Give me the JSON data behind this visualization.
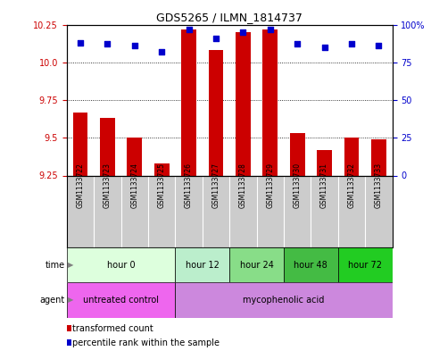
{
  "title": "GDS5265 / ILMN_1814737",
  "samples": [
    "GSM1133722",
    "GSM1133723",
    "GSM1133724",
    "GSM1133725",
    "GSM1133726",
    "GSM1133727",
    "GSM1133728",
    "GSM1133729",
    "GSM1133730",
    "GSM1133731",
    "GSM1133732",
    "GSM1133733"
  ],
  "bar_values": [
    9.67,
    9.63,
    9.5,
    9.33,
    10.22,
    10.08,
    10.2,
    10.22,
    9.53,
    9.42,
    9.5,
    9.49
  ],
  "percentile_values": [
    88,
    87,
    86,
    82,
    97,
    91,
    95,
    97,
    87,
    85,
    87,
    86
  ],
  "ylim_left": [
    9.25,
    10.25
  ],
  "ylim_right": [
    0,
    100
  ],
  "yticks_left": [
    9.25,
    9.5,
    9.75,
    10.0,
    10.25
  ],
  "yticks_right": [
    0,
    25,
    50,
    75,
    100
  ],
  "bar_color": "#CC0000",
  "dot_color": "#0000CC",
  "bar_baseline": 9.25,
  "time_groups": [
    {
      "label": "hour 0",
      "start": 0,
      "end": 4,
      "color": "#ddffdd"
    },
    {
      "label": "hour 12",
      "start": 4,
      "end": 6,
      "color": "#bbeecc"
    },
    {
      "label": "hour 24",
      "start": 6,
      "end": 8,
      "color": "#88dd88"
    },
    {
      "label": "hour 48",
      "start": 8,
      "end": 10,
      "color": "#44bb44"
    },
    {
      "label": "hour 72",
      "start": 10,
      "end": 12,
      "color": "#22cc22"
    }
  ],
  "agent_groups": [
    {
      "label": "untreated control",
      "start": 0,
      "end": 4,
      "color": "#ee66ee"
    },
    {
      "label": "mycophenolic acid",
      "start": 4,
      "end": 12,
      "color": "#cc88dd"
    }
  ],
  "legend_bar_label": "transformed count",
  "legend_dot_label": "percentile rank within the sample",
  "sample_bg_color": "#cccccc",
  "left_tick_color": "#CC0000",
  "right_tick_color": "#0000CC"
}
